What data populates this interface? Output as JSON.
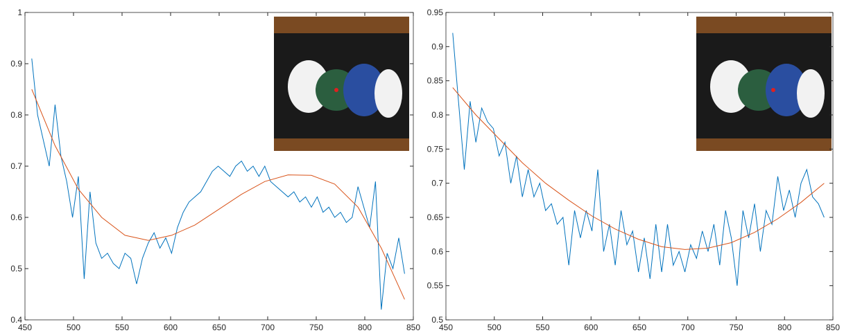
{
  "chart_data": [
    {
      "type": "line",
      "xlim": [
        450,
        850
      ],
      "ylim": [
        0.4,
        1
      ],
      "xticks": [
        450,
        500,
        550,
        600,
        650,
        700,
        750,
        800,
        850
      ],
      "yticks": [
        0.4,
        0.5,
        0.6,
        0.7,
        0.8,
        0.9,
        1
      ],
      "series": [
        {
          "color": "#0072bd",
          "x": [
            457,
            463,
            469,
            475,
            481,
            487,
            493,
            499,
            505,
            511,
            517,
            523,
            529,
            535,
            541,
            547,
            553,
            559,
            565,
            571,
            577,
            583,
            589,
            595,
            601,
            607,
            613,
            619,
            625,
            631,
            637,
            643,
            649,
            655,
            661,
            667,
            673,
            679,
            685,
            691,
            697,
            703,
            709,
            715,
            721,
            727,
            733,
            739,
            745,
            751,
            757,
            763,
            769,
            775,
            781,
            787,
            793,
            799,
            805,
            811,
            817,
            823,
            829,
            835,
            841
          ],
          "values": [
            0.91,
            0.8,
            0.75,
            0.7,
            0.82,
            0.72,
            0.67,
            0.6,
            0.68,
            0.48,
            0.65,
            0.55,
            0.52,
            0.53,
            0.51,
            0.5,
            0.53,
            0.52,
            0.47,
            0.52,
            0.55,
            0.57,
            0.54,
            0.56,
            0.53,
            0.58,
            0.61,
            0.63,
            0.64,
            0.65,
            0.67,
            0.69,
            0.7,
            0.69,
            0.68,
            0.7,
            0.71,
            0.69,
            0.7,
            0.68,
            0.7,
            0.67,
            0.66,
            0.65,
            0.64,
            0.65,
            0.63,
            0.64,
            0.62,
            0.64,
            0.61,
            0.62,
            0.6,
            0.61,
            0.59,
            0.6,
            0.66,
            0.62,
            0.58,
            0.67,
            0.42,
            0.53,
            0.5,
            0.56,
            0.49
          ]
        },
        {
          "color": "#d95319",
          "x": [
            457,
            481,
            505,
            529,
            553,
            577,
            601,
            625,
            649,
            673,
            697,
            721,
            745,
            769,
            793,
            817,
            841
          ],
          "values": [
            0.85,
            0.74,
            0.655,
            0.6,
            0.565,
            0.555,
            0.565,
            0.585,
            0.615,
            0.645,
            0.67,
            0.683,
            0.682,
            0.665,
            0.62,
            0.54,
            0.44
          ]
        }
      ]
    },
    {
      "type": "line",
      "xlim": [
        450,
        850
      ],
      "ylim": [
        0.5,
        0.95
      ],
      "xticks": [
        450,
        500,
        550,
        600,
        650,
        700,
        750,
        800,
        850
      ],
      "yticks": [
        0.5,
        0.55,
        0.6,
        0.65,
        0.7,
        0.75,
        0.8,
        0.85,
        0.9,
        0.95
      ],
      "series": [
        {
          "color": "#0072bd",
          "x": [
            457,
            463,
            469,
            475,
            481,
            487,
            493,
            499,
            505,
            511,
            517,
            523,
            529,
            535,
            541,
            547,
            553,
            559,
            565,
            571,
            577,
            583,
            589,
            595,
            601,
            607,
            613,
            619,
            625,
            631,
            637,
            643,
            649,
            655,
            661,
            667,
            673,
            679,
            685,
            691,
            697,
            703,
            709,
            715,
            721,
            727,
            733,
            739,
            745,
            751,
            757,
            763,
            769,
            775,
            781,
            787,
            793,
            799,
            805,
            811,
            817,
            823,
            829,
            835,
            841
          ],
          "values": [
            0.92,
            0.82,
            0.72,
            0.82,
            0.76,
            0.81,
            0.79,
            0.78,
            0.74,
            0.76,
            0.7,
            0.74,
            0.68,
            0.72,
            0.68,
            0.7,
            0.66,
            0.67,
            0.64,
            0.65,
            0.58,
            0.66,
            0.62,
            0.66,
            0.63,
            0.72,
            0.6,
            0.64,
            0.58,
            0.66,
            0.61,
            0.63,
            0.57,
            0.62,
            0.56,
            0.64,
            0.57,
            0.64,
            0.58,
            0.6,
            0.57,
            0.61,
            0.59,
            0.63,
            0.6,
            0.64,
            0.58,
            0.66,
            0.62,
            0.55,
            0.66,
            0.62,
            0.67,
            0.6,
            0.66,
            0.64,
            0.71,
            0.66,
            0.69,
            0.65,
            0.7,
            0.72,
            0.68,
            0.67,
            0.65
          ]
        },
        {
          "color": "#d95319",
          "x": [
            457,
            481,
            505,
            529,
            553,
            577,
            601,
            625,
            649,
            673,
            697,
            721,
            745,
            769,
            793,
            817,
            841
          ],
          "values": [
            0.84,
            0.8,
            0.765,
            0.73,
            0.7,
            0.675,
            0.652,
            0.633,
            0.618,
            0.607,
            0.603,
            0.605,
            0.613,
            0.628,
            0.648,
            0.672,
            0.7
          ]
        }
      ]
    }
  ]
}
